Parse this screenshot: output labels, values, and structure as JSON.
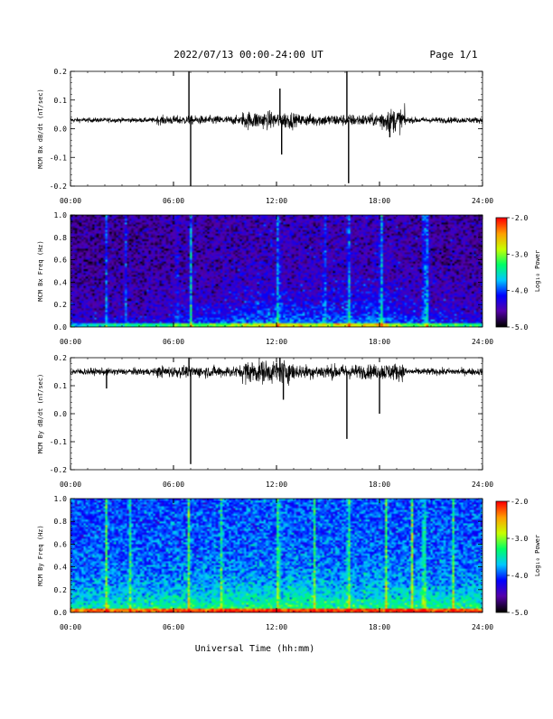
{
  "header": {
    "title": "2022/07/13  00:00-24:00 UT",
    "page": "Page 1/1"
  },
  "footer": {
    "xlabel": "Universal Time (hh:mm)"
  },
  "colors": {
    "trace": "#000000",
    "colormap": [
      "#000000",
      "#5500aa",
      "#0000ff",
      "#00c8ff",
      "#00ff66",
      "#c8ff00",
      "#ffa000",
      "#ff0000"
    ]
  },
  "chart_data": [
    {
      "type": "line",
      "ylabel": "MCM Bx dB/dt (nT/sec)",
      "xlim": [
        0,
        24
      ],
      "ylim": [
        -0.2,
        0.2
      ],
      "x_ticks": [
        "00:00",
        "06:00",
        "12:00",
        "18:00",
        "24:00"
      ],
      "y_ticks": [
        "-0.2",
        "-0.1",
        "0.0",
        "0.1",
        "0.2"
      ],
      "baseline": 0.03,
      "noise_segments": [
        [
          0,
          5,
          0.008
        ],
        [
          5,
          10,
          0.015
        ],
        [
          10,
          13,
          0.03
        ],
        [
          13,
          16,
          0.02
        ],
        [
          16,
          18,
          0.02
        ],
        [
          18,
          19.5,
          0.04
        ],
        [
          19.5,
          24,
          0.01
        ]
      ],
      "spikes": [
        [
          6.9,
          0.2
        ],
        [
          7.0,
          -0.2
        ],
        [
          12.2,
          0.14
        ],
        [
          12.3,
          -0.09
        ],
        [
          16.1,
          0.2
        ],
        [
          16.2,
          -0.19
        ],
        [
          18.6,
          -0.03
        ]
      ]
    },
    {
      "type": "heatmap",
      "ylabel": "MCM Bx Freq (Hz)",
      "colorbar_label": "Log₁₀ Power",
      "colorbar_ticks": [
        "-2.0",
        "-3.0",
        "-4.0",
        "-5.0"
      ],
      "zlim": [
        -5,
        -2
      ],
      "xlim": [
        0,
        24
      ],
      "ylim": [
        0,
        1.0
      ],
      "x_ticks": [
        "00:00",
        "06:00",
        "12:00",
        "18:00",
        "24:00"
      ],
      "y_ticks": [
        "0.0",
        "0.2",
        "0.4",
        "0.6",
        "0.8",
        "1.0"
      ],
      "background_level": -4.7,
      "activity": [
        [
          0,
          0.2
        ],
        [
          5,
          0.3
        ],
        [
          9,
          0.45
        ],
        [
          12,
          0.6
        ],
        [
          14,
          0.5
        ],
        [
          18,
          0.6
        ],
        [
          20,
          0.4
        ],
        [
          24,
          0.3
        ]
      ],
      "streaks": [
        [
          2.1,
          0.8
        ],
        [
          3.2,
          0.6
        ],
        [
          6.2,
          0.5
        ],
        [
          7.0,
          1.0
        ],
        [
          12.1,
          0.9
        ],
        [
          14.8,
          0.7
        ],
        [
          16.2,
          0.9
        ],
        [
          18.1,
          1.0
        ],
        [
          20.6,
          1.0
        ],
        [
          20.8,
          0.9
        ]
      ]
    },
    {
      "type": "line",
      "ylabel": "MCM By dB/dt (nT/sec)",
      "xlim": [
        0,
        24
      ],
      "ylim": [
        -0.2,
        0.2
      ],
      "x_ticks": [
        "00:00",
        "06:00",
        "12:00",
        "18:00",
        "24:00"
      ],
      "y_ticks": [
        "-0.2",
        "-0.1",
        "0.0",
        "0.1",
        "0.2"
      ],
      "baseline": 0.15,
      "noise_segments": [
        [
          0,
          5,
          0.012
        ],
        [
          5,
          10,
          0.02
        ],
        [
          10,
          13,
          0.04
        ],
        [
          13,
          16,
          0.025
        ],
        [
          16,
          18,
          0.025
        ],
        [
          18,
          19.5,
          0.03
        ],
        [
          19.5,
          24,
          0.012
        ]
      ],
      "spikes": [
        [
          2.1,
          0.09
        ],
        [
          6.9,
          0.2
        ],
        [
          7.0,
          -0.18
        ],
        [
          12.2,
          0.2
        ],
        [
          12.4,
          0.05
        ],
        [
          16.1,
          -0.09
        ],
        [
          18.0,
          0.0
        ]
      ]
    },
    {
      "type": "heatmap",
      "ylabel": "MCM By Freq (Hz)",
      "colorbar_label": "Log₁₀ Power",
      "colorbar_ticks": [
        "-2.0",
        "-3.0",
        "-4.0",
        "-5.0"
      ],
      "zlim": [
        -5,
        -2
      ],
      "xlim": [
        0,
        24
      ],
      "ylim": [
        0,
        1.0
      ],
      "x_ticks": [
        "00:00",
        "06:00",
        "12:00",
        "18:00",
        "24:00"
      ],
      "y_ticks": [
        "0.0",
        "0.2",
        "0.4",
        "0.6",
        "0.8",
        "1.0"
      ],
      "background_level": -4.2,
      "activity": [
        [
          0,
          0.5
        ],
        [
          5,
          0.55
        ],
        [
          9,
          0.6
        ],
        [
          12,
          0.65
        ],
        [
          16,
          0.6
        ],
        [
          20,
          0.6
        ],
        [
          24,
          0.55
        ]
      ],
      "streaks": [
        [
          2.1,
          1.0
        ],
        [
          3.5,
          0.8
        ],
        [
          6.9,
          1.0
        ],
        [
          8.8,
          0.8
        ],
        [
          12.1,
          1.0
        ],
        [
          14.2,
          0.8
        ],
        [
          16.2,
          1.0
        ],
        [
          18.4,
          1.0
        ],
        [
          19.9,
          1.0
        ],
        [
          20.6,
          1.0
        ],
        [
          22.3,
          0.8
        ]
      ]
    }
  ]
}
